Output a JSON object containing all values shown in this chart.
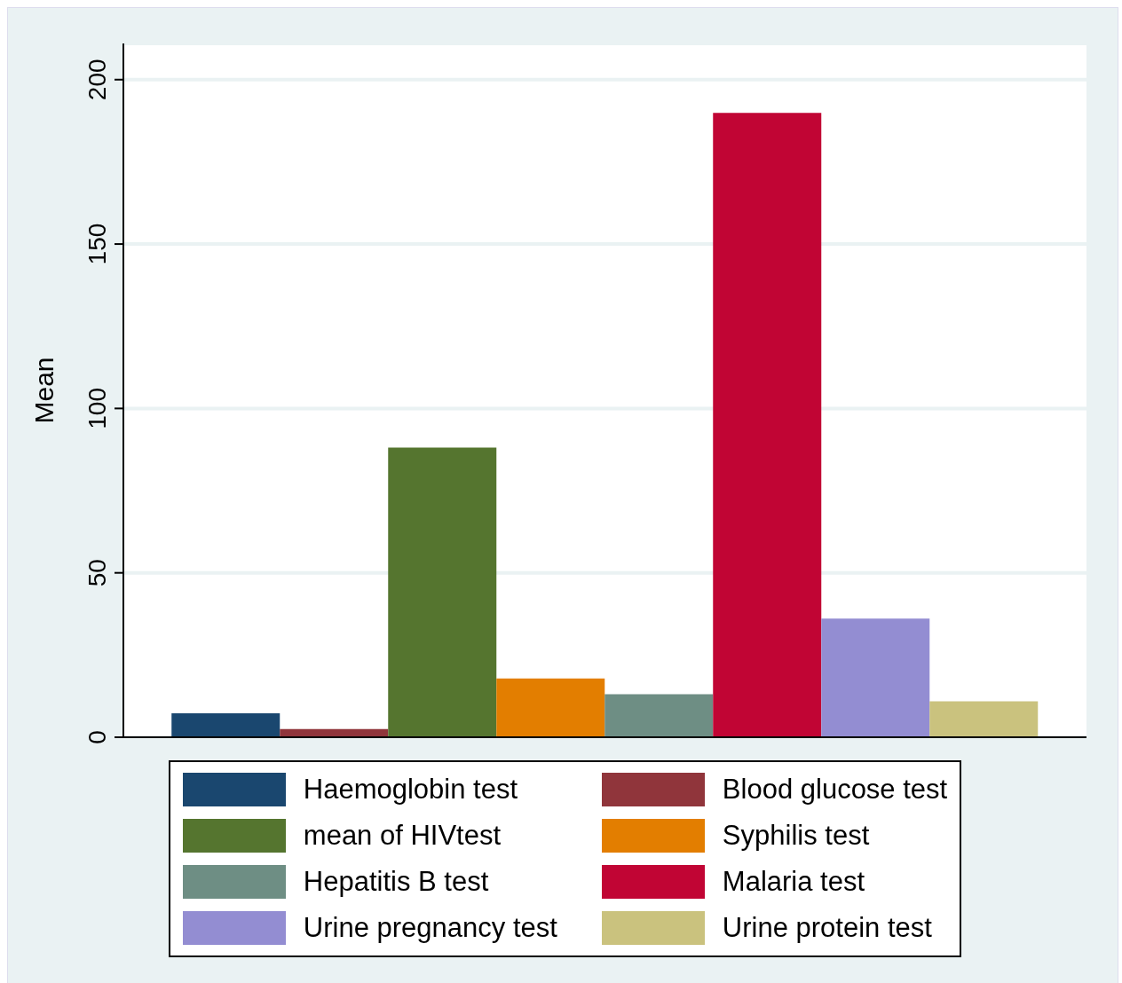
{
  "chart_data": {
    "type": "bar",
    "ylabel": "Mean",
    "categories": [
      null
    ],
    "series": [
      {
        "name": "Haemoglobin test",
        "color": "#1a476f",
        "values": [
          7.3
        ]
      },
      {
        "name": "Blood glucose test",
        "color": "#90353b",
        "values": [
          2.5
        ]
      },
      {
        "name": "mean of HIVtest",
        "color": "#55752f",
        "values": [
          88.1
        ]
      },
      {
        "name": "Syphilis test",
        "color": "#e37e00",
        "values": [
          17.9
        ]
      },
      {
        "name": "Hepatitis B test",
        "color": "#6e8e84",
        "values": [
          13.1
        ]
      },
      {
        "name": "Malaria test",
        "color": "#c10534",
        "values": [
          189.9
        ]
      },
      {
        "name": "Urine pregnancy test",
        "color": "#938dd2",
        "values": [
          36.1
        ]
      },
      {
        "name": "Urine protein test",
        "color": "#cac27e",
        "values": [
          10.9
        ]
      }
    ],
    "ylim": [
      0,
      211
    ],
    "yticks": [
      0,
      50,
      100,
      150,
      200
    ],
    "grid": "y",
    "legend": "bottom"
  }
}
